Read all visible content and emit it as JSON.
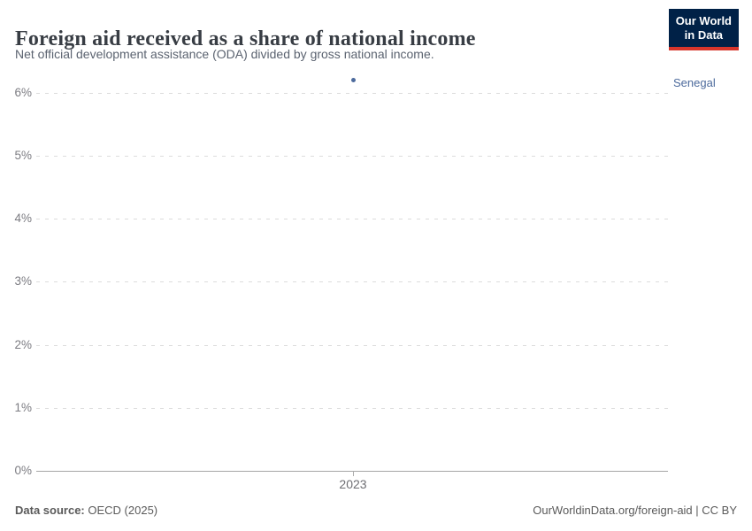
{
  "header": {
    "logo": {
      "line1": "Our World",
      "line2": "in Data"
    }
  },
  "chart_data": {
    "type": "scatter",
    "title": "Foreign aid received as a share of national income",
    "subtitle": "Net official development assistance (ODA) divided by gross national income.",
    "series": [
      {
        "name": "Senegal",
        "color": "#4c6a9c",
        "points": [
          {
            "x": 2023,
            "y": 6.2
          }
        ]
      }
    ],
    "x_ticks": [
      "2023"
    ],
    "y_ticks": [
      0,
      1,
      2,
      3,
      4,
      5,
      6
    ],
    "y_tick_format": "{}%",
    "ylim": [
      0,
      6.6
    ],
    "xlabel": "",
    "ylabel": "",
    "grid": "horizontal-dashed",
    "legend_position": "right-of-plot"
  },
  "footer": {
    "source_label": "Data source:",
    "source_value": "OECD (2025)",
    "credit": "OurWorldinData.org/foreign-aid | CC BY"
  },
  "colors": {
    "series_blue": "#4c6a9c",
    "logo_background": "#002147",
    "logo_red_bar": "#d7352b",
    "title_text": "#383d44",
    "subtitle_text": "#5b6370",
    "tick_label": "#7c7c82",
    "gridline": "#dcdcdc",
    "axis_line": "#a5a5a5",
    "footer_text": "#5a5a5a"
  }
}
